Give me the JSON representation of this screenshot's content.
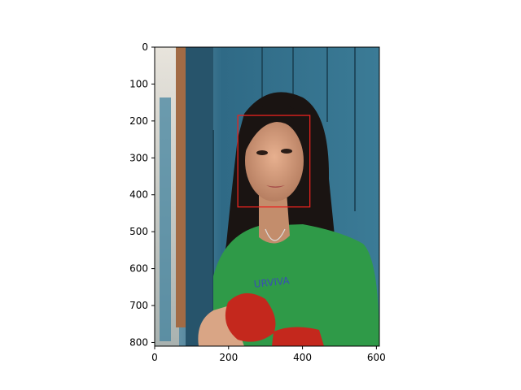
{
  "image_axes": {
    "x_ticks": [
      "0",
      "200",
      "400",
      "600"
    ],
    "y_ticks": [
      "0",
      "100",
      "200",
      "300",
      "400",
      "500",
      "600",
      "700",
      "800"
    ]
  },
  "chart_data": {
    "type": "image",
    "x_ticks": [
      0,
      200,
      400,
      600
    ],
    "y_ticks": [
      0,
      100,
      200,
      300,
      400,
      500,
      600,
      700,
      800
    ],
    "xlim": [
      0,
      608
    ],
    "ylim": [
      810,
      0
    ],
    "bounding_box": {
      "x_min": 225,
      "y_min": 185,
      "x_max": 420,
      "y_max": 433,
      "color": "#e8231f"
    }
  },
  "photo": {
    "wall_color": "#2e6a86",
    "shirt_color": "#2f9a48",
    "bag_color": "#c4281d"
  }
}
